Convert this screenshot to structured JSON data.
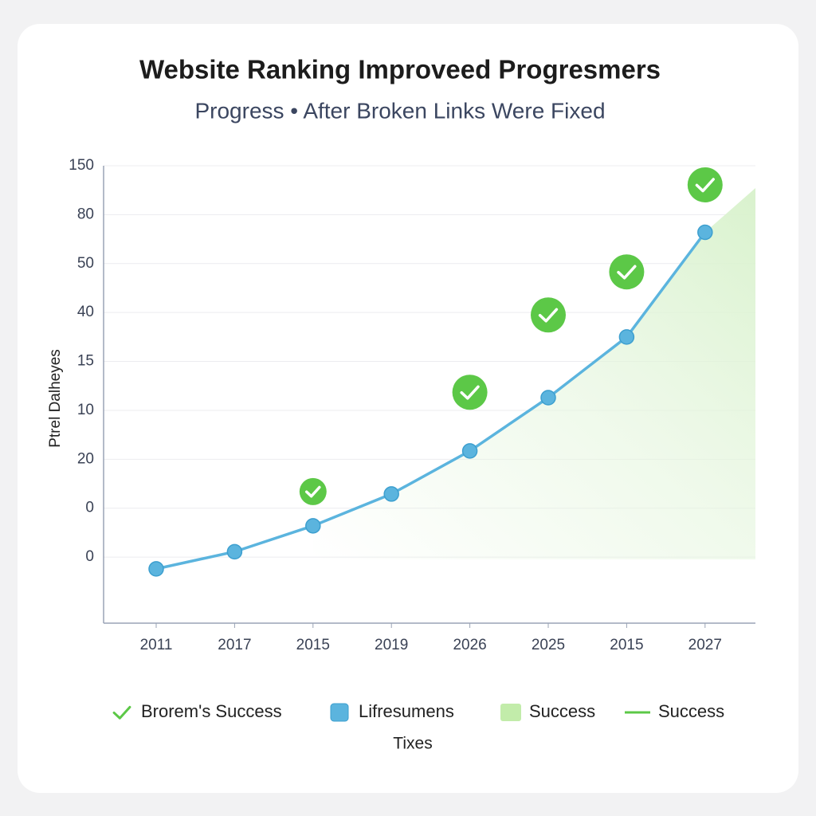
{
  "chart_data": {
    "type": "line",
    "title": "Website Ranking Improveed Progresmers",
    "subtitle": "Progress • After Broken Links Were Fixed",
    "y_label": "Ptrel Dalheyes",
    "x_label": "Tixes",
    "categories": [
      "2011",
      "2017",
      "2015",
      "2019",
      "2026",
      "2025",
      "2015",
      "2027"
    ],
    "series": [
      {
        "name": "Lifresumens",
        "color": "#5bb4de",
        "marker": "dot",
        "values": [
          -0.24,
          0.11,
          0.64,
          1.29,
          2.17,
          3.26,
          4.5,
          6.64
        ]
      },
      {
        "name": "Brorem's Success",
        "color": "#5cc847",
        "marker": "check",
        "values": [
          null,
          null,
          1.34,
          null,
          3.37,
          4.95,
          5.83,
          7.61
        ]
      }
    ],
    "legend_extra": [
      {
        "name": "Success",
        "color": "#c2ecaa",
        "marker": "swatch"
      },
      {
        "name": "Success",
        "color": "#5cc847",
        "marker": "line"
      }
    ],
    "ylim": [
      -1.35,
      8
    ],
    "yticks": [
      {
        "value": 8,
        "label": "150"
      },
      {
        "value": 7,
        "label": "80"
      },
      {
        "value": 6,
        "label": "50"
      },
      {
        "value": 5,
        "label": "40"
      },
      {
        "value": 4,
        "label": "15"
      },
      {
        "value": 3,
        "label": "10"
      },
      {
        "value": 2,
        "label": "20"
      },
      {
        "value": 1,
        "label": "0"
      },
      {
        "value": 0,
        "label": "0"
      }
    ],
    "grid": true
  }
}
